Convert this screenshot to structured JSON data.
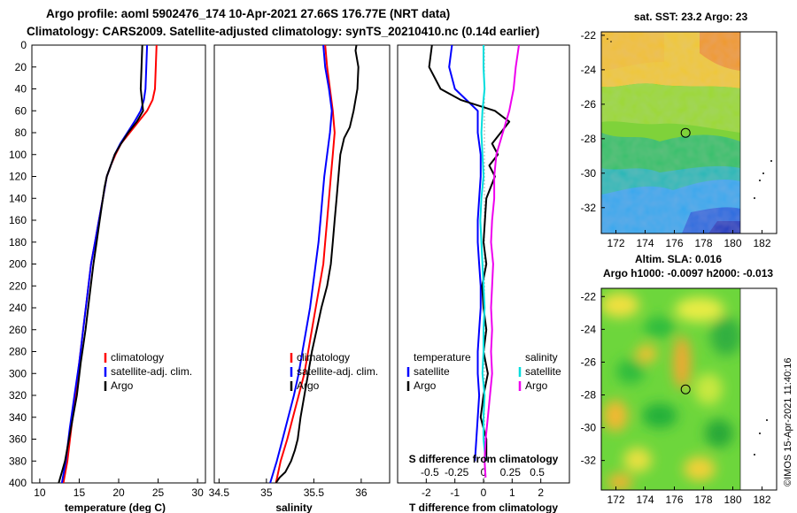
{
  "header": {
    "line1": "Argo profile: aoml 5902476_174 10-Apr-2021 27.66S 176.77E (NRT data)",
    "line2": "Climatology: CARS2009. Satellite-adjusted climatology: synTS_20210410.nc (0.14d earlier)"
  },
  "colors": {
    "climatology": "#ff0000",
    "satellite": "#0000ff",
    "argo": "#000000",
    "t_satellite": "#0000ff",
    "s_satellite": "#00dddd",
    "s_argo": "#ee00ee"
  },
  "chart_data": [
    {
      "type": "line",
      "id": "temperature",
      "xlabel": "temperature (deg C)",
      "ylabel": "",
      "xlim": [
        9,
        31
      ],
      "ylim": [
        400,
        0
      ],
      "xticks": [
        10,
        15,
        20,
        25,
        30
      ],
      "xtick_labels": [
        "10",
        "15",
        "20",
        "25",
        "30"
      ],
      "yticks": [
        0,
        20,
        40,
        60,
        80,
        100,
        120,
        140,
        160,
        180,
        200,
        220,
        240,
        260,
        280,
        300,
        320,
        340,
        360,
        380,
        400
      ],
      "ytick_labels": [
        "0",
        "20",
        "40",
        "60",
        "80",
        "100",
        "120",
        "140",
        "160",
        "180",
        "200",
        "220",
        "240",
        "260",
        "280",
        "300",
        "320",
        "340",
        "360",
        "380",
        "400"
      ],
      "legend": [
        "climatology",
        "satellite-adj. clim.",
        "Argo"
      ],
      "series": [
        {
          "name": "climatology",
          "color": "#ff0000",
          "x": [
            24.8,
            24.7,
            24.6,
            24.3,
            23.6,
            22.5,
            21.4,
            20.3,
            19.6,
            19.0,
            18.5,
            18.0,
            17.5,
            17.0,
            16.5,
            16.0,
            15.5,
            15.0,
            14.5,
            14.0,
            13.5,
            13.0
          ],
          "depth": [
            0,
            20,
            40,
            50,
            60,
            70,
            80,
            90,
            100,
            110,
            120,
            140,
            160,
            180,
            200,
            230,
            260,
            290,
            320,
            350,
            380,
            400
          ]
        },
        {
          "name": "satellite-adj. clim.",
          "color": "#0000ff",
          "x": [
            23.6,
            23.5,
            23.4,
            23.2,
            22.8,
            22.0,
            21.1,
            20.2,
            19.5,
            19.0,
            18.5,
            18.0,
            17.5,
            17.0,
            16.5,
            16.0,
            15.5,
            15.0,
            14.4,
            13.8,
            13.3,
            12.8
          ],
          "depth": [
            0,
            20,
            40,
            50,
            60,
            70,
            80,
            90,
            100,
            110,
            120,
            140,
            160,
            180,
            200,
            230,
            260,
            290,
            320,
            350,
            380,
            400
          ]
        },
        {
          "name": "Argo",
          "color": "#000000",
          "x": [
            23.0,
            22.9,
            22.8,
            23.1,
            22.3,
            21.2,
            20.3,
            19.5,
            19.0,
            18.5,
            18.2,
            18.0,
            17.6,
            17.2,
            16.8,
            16.3,
            15.8,
            15.2,
            14.7,
            14.2,
            13.7,
            13.2,
            12.8,
            12.4
          ],
          "depth": [
            0,
            20,
            40,
            60,
            70,
            80,
            90,
            100,
            110,
            120,
            130,
            140,
            160,
            180,
            200,
            230,
            260,
            290,
            320,
            340,
            360,
            380,
            390,
            400
          ]
        }
      ]
    },
    {
      "type": "line",
      "id": "salinity",
      "xlabel": "salinity",
      "ylabel": "",
      "xlim": [
        34.45,
        36.3
      ],
      "ylim": [
        400,
        0
      ],
      "xticks": [
        34.5,
        35,
        35.5,
        36
      ],
      "xtick_labels": [
        "34.5",
        "35",
        "35.5",
        "36"
      ],
      "legend": [
        "climatology",
        "satellite-adj. clim.",
        "Argo"
      ],
      "series": [
        {
          "name": "climatology",
          "color": "#ff0000",
          "x": [
            35.62,
            35.64,
            35.67,
            35.7,
            35.72,
            35.7,
            35.68,
            35.66,
            35.64,
            35.62,
            35.6,
            35.56,
            35.52,
            35.48,
            35.44,
            35.4,
            35.34,
            35.28,
            35.22,
            35.15,
            35.1
          ],
          "depth": [
            0,
            20,
            40,
            60,
            80,
            100,
            120,
            140,
            160,
            180,
            200,
            220,
            240,
            260,
            280,
            300,
            320,
            340,
            360,
            380,
            400
          ]
        },
        {
          "name": "satellite-adj. clim.",
          "color": "#0000ff",
          "x": [
            35.6,
            35.62,
            35.66,
            35.69,
            35.67,
            35.64,
            35.61,
            35.59,
            35.57,
            35.55,
            35.52,
            35.49,
            35.46,
            35.42,
            35.38,
            35.34,
            35.29,
            35.23,
            35.17,
            35.11,
            35.04
          ],
          "depth": [
            0,
            20,
            40,
            60,
            80,
            100,
            120,
            140,
            160,
            180,
            200,
            220,
            240,
            260,
            280,
            300,
            320,
            340,
            360,
            380,
            400
          ]
        },
        {
          "name": "Argo",
          "color": "#000000",
          "x": [
            35.95,
            35.94,
            35.97,
            35.96,
            35.92,
            35.88,
            35.82,
            35.78,
            35.76,
            35.74,
            35.72,
            35.7,
            35.68,
            35.64,
            35.58,
            35.53,
            35.48,
            35.44,
            35.4,
            35.36,
            35.33,
            35.3,
            35.26,
            35.2,
            35.14,
            35.1
          ],
          "depth": [
            0,
            5,
            20,
            40,
            60,
            75,
            85,
            100,
            120,
            140,
            160,
            180,
            200,
            220,
            240,
            260,
            280,
            300,
            320,
            340,
            360,
            370,
            380,
            390,
            395,
            400
          ]
        }
      ]
    },
    {
      "type": "line",
      "id": "difference",
      "xlabel": "T difference from climatology",
      "xlabel_top": "S difference from climatology",
      "xlim": [
        -3,
        3
      ],
      "ylim": [
        400,
        0
      ],
      "xticks": [
        -2,
        -1,
        0,
        1,
        2
      ],
      "xtick_labels": [
        "-2",
        "-1",
        "0",
        "1",
        "2"
      ],
      "s_xticks": [
        -0.5,
        -0.25,
        0,
        0.25,
        0.5
      ],
      "s_xtick_labels": [
        "-0.5",
        "-0.25",
        "0",
        "0.25",
        "0.5"
      ],
      "legend_temperature": {
        "title": "temperature",
        "entries": [
          "satellite",
          "Argo"
        ]
      },
      "legend_salinity": {
        "title": "salinity",
        "entries": [
          "satellite",
          "Argo"
        ]
      },
      "series": [
        {
          "name": "T satellite",
          "color": "#0000ff",
          "x": [
            -1.1,
            -1.2,
            -1.0,
            -0.6,
            -0.2,
            -0.2,
            -0.1,
            -0.1,
            -0.15,
            -0.2,
            -0.2,
            -0.15,
            -0.1,
            -0.1,
            -0.15,
            -0.2,
            -0.2,
            -0.15,
            -0.2,
            -0.25,
            -0.3
          ],
          "depth": [
            0,
            20,
            40,
            50,
            60,
            80,
            100,
            120,
            140,
            160,
            180,
            200,
            220,
            240,
            260,
            280,
            300,
            320,
            340,
            360,
            380
          ]
        },
        {
          "name": "T Argo",
          "color": "#000000",
          "x": [
            -1.8,
            -1.9,
            -1.5,
            -0.8,
            0.4,
            0.9,
            0.6,
            0.3,
            0.5,
            0.2,
            0.4,
            0.1,
            0.05,
            0.0,
            0.1,
            -0.05,
            0.0,
            0.1,
            0.0,
            0.15,
            0.0,
            -0.1,
            0.1,
            0.1
          ],
          "depth": [
            0,
            20,
            40,
            50,
            60,
            70,
            80,
            90,
            100,
            110,
            120,
            140,
            160,
            180,
            200,
            220,
            240,
            260,
            280,
            300,
            320,
            340,
            360,
            380
          ]
        },
        {
          "name": "S satellite",
          "color": "#00dddd",
          "s_x": [
            0.0,
            0.0,
            0.01,
            -0.01,
            -0.02,
            -0.01,
            0.0,
            -0.02,
            -0.03,
            -0.02,
            -0.01,
            0.0,
            0.01,
            0.0,
            0.0,
            -0.01,
            0.01,
            0.0,
            0.0,
            0.02
          ],
          "depth": [
            0,
            20,
            40,
            60,
            80,
            100,
            120,
            140,
            160,
            180,
            200,
            220,
            240,
            260,
            280,
            300,
            320,
            340,
            360,
            380
          ]
        },
        {
          "name": "S Argo",
          "color": "#ee00ee",
          "s_x": [
            0.33,
            0.3,
            0.28,
            0.24,
            0.18,
            0.12,
            0.1,
            0.1,
            0.08,
            0.07,
            0.09,
            0.08,
            0.07,
            0.08,
            0.07,
            0.08,
            0.06,
            0.04,
            0.02,
            0.01,
            0.02
          ],
          "depth": [
            0,
            20,
            40,
            60,
            80,
            100,
            120,
            140,
            160,
            180,
            200,
            220,
            240,
            260,
            280,
            300,
            320,
            340,
            360,
            380,
            395
          ]
        }
      ]
    },
    {
      "type": "heatmap",
      "id": "sst-map",
      "title": "sat. SST: 23.2 Argo: 23",
      "xlim": [
        171,
        183
      ],
      "ylim": [
        -33.5,
        -21.8
      ],
      "xticks": [
        172,
        174,
        176,
        178,
        180,
        182
      ],
      "xtick_labels": [
        "172",
        "174",
        "176",
        "178",
        "180",
        "182"
      ],
      "yticks": [
        -22,
        -24,
        -26,
        -28,
        -30,
        -32
      ],
      "ytick_labels": [
        "-22",
        "-24",
        "-26",
        "-28",
        "-30",
        "-32"
      ],
      "data_xlim": [
        171,
        180
      ],
      "marker": {
        "lon": 176.77,
        "lat": -27.66
      }
    },
    {
      "type": "heatmap",
      "id": "sla-map",
      "title_line1": "Altim. SLA: 0.016",
      "title_line2": "Argo h1000: -0.0097 h2000: -0.013",
      "xlim": [
        171,
        183
      ],
      "ylim": [
        -33.8,
        -21.5
      ],
      "xticks": [
        172,
        174,
        176,
        178,
        180,
        182
      ],
      "xtick_labels": [
        "172",
        "174",
        "176",
        "178",
        "180",
        "182"
      ],
      "yticks": [
        -22,
        -24,
        -26,
        -28,
        -30,
        -32
      ],
      "ytick_labels": [
        "-22",
        "-24",
        "-26",
        "-28",
        "-30",
        "-32"
      ],
      "data_xlim": [
        171,
        180
      ],
      "marker": {
        "lon": 176.77,
        "lat": -27.66
      }
    }
  ],
  "credit": "©IMOS 15-Apr-2021 11:40:16"
}
